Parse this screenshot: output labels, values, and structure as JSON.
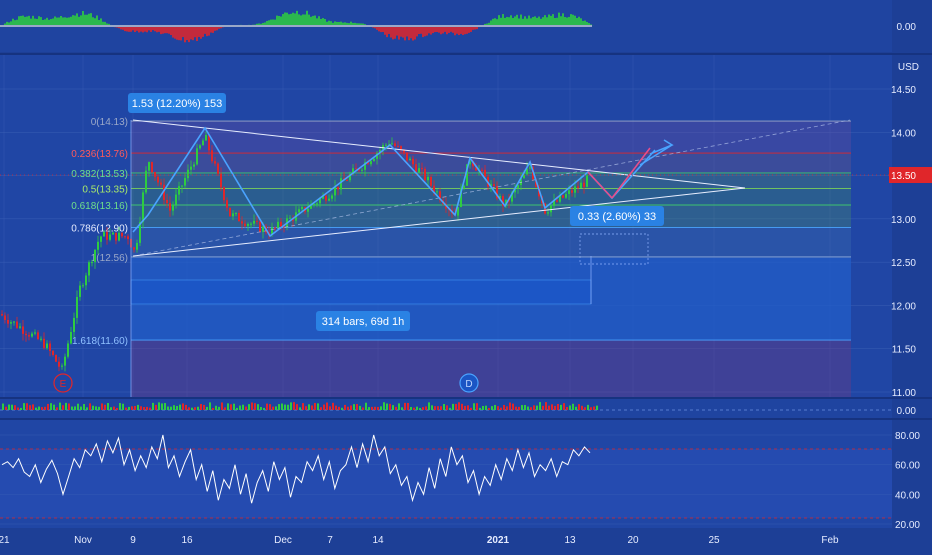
{
  "colors": {
    "background": "#1d3f96",
    "pane_bg": "#2046a5",
    "grid": "#3a5fb5",
    "axis_text": "#e6ecff",
    "up": "#2ecc40",
    "down": "#e0262a",
    "pattern_line": "#4aa3ff",
    "rsi_line": "#ffffff",
    "price_badge": "#e0262a",
    "label_box": "#2a82e4"
  },
  "chart_data": {
    "type": "candlestick",
    "symbol_currency": "USD",
    "x_ticks": [
      "21",
      "Nov",
      "9",
      "16",
      "Dec",
      "7",
      "14",
      "2021",
      "13",
      "20",
      "25",
      "Feb"
    ],
    "y_ticks": [
      "14.50",
      "14.00",
      "13.50",
      "13.00",
      "12.50",
      "12.00",
      "11.50",
      "11.00"
    ],
    "ylim": [
      11.0,
      14.5
    ],
    "last_price": "13.50",
    "fib_levels": [
      {
        "label": "0(14.13)",
        "price": 14.13
      },
      {
        "label": "0.236(13.76)",
        "price": 13.76
      },
      {
        "label": "0.382(13.53)",
        "price": 13.53
      },
      {
        "label": "0.5(13.35)",
        "price": 13.35
      },
      {
        "label": "0.618(13.16)",
        "price": 13.16
      },
      {
        "label": "0.786(12.90)",
        "price": 12.9
      },
      {
        "label": "1(12.56)",
        "price": 12.56
      },
      {
        "label": "1.618(11.60)",
        "price": 11.6
      }
    ],
    "range_labels": {
      "top_box": "1.53 (12.20%) 153",
      "small_box": "0.33 (2.60%) 33",
      "bars_box": "314 bars, 69d 1h"
    },
    "event_markers": [
      "E",
      "D"
    ],
    "top_oscillator": {
      "y_tick": "0.00"
    },
    "volume_pane": {
      "y_tick": "0.00"
    },
    "rsi": {
      "y_ticks": [
        "80.00",
        "60.00",
        "40.00",
        "20.00"
      ],
      "ylim": [
        20,
        85
      ],
      "values": [
        60,
        62,
        58,
        64,
        55,
        52,
        60,
        48,
        57,
        63,
        54,
        40,
        52,
        64,
        58,
        70,
        66,
        74,
        62,
        76,
        68,
        78,
        60,
        70,
        56,
        66,
        58,
        72,
        64,
        80,
        58,
        66,
        52,
        62,
        70,
        50,
        60,
        42,
        56,
        36,
        50,
        44,
        60,
        40,
        54,
        34,
        48,
        56,
        42,
        62,
        50,
        58,
        38,
        52,
        48,
        62,
        56,
        66,
        50,
        62,
        44,
        56,
        60,
        72,
        58,
        74,
        62,
        80,
        66,
        72,
        54,
        60,
        46,
        52,
        36,
        48,
        40,
        58,
        44,
        64,
        52,
        72,
        60,
        66,
        48,
        56,
        40,
        52,
        46,
        60,
        50,
        64,
        56,
        70,
        58,
        68,
        52,
        60,
        56,
        64,
        52,
        62,
        60,
        70,
        66,
        72,
        68
      ]
    }
  }
}
